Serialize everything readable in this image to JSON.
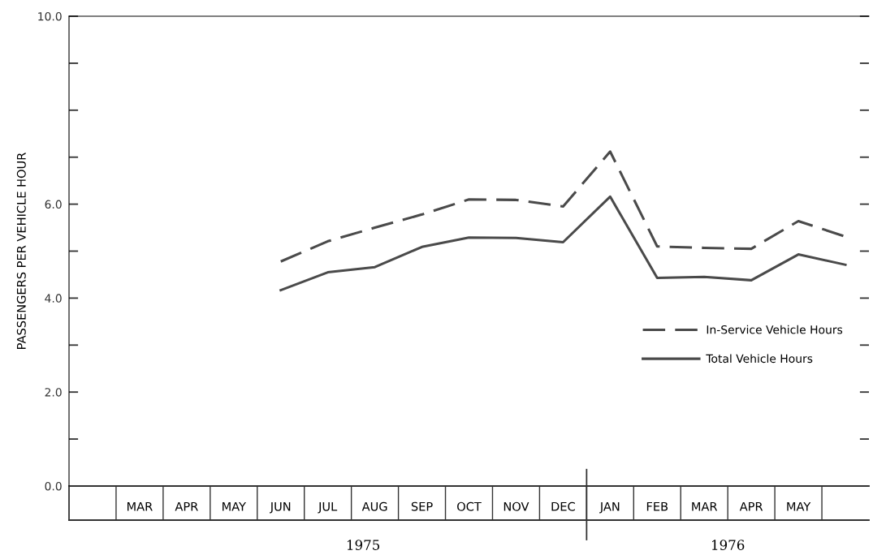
{
  "chart_data": {
    "type": "line",
    "ylabel": "PASSENGERS PER VEHICLE HOUR",
    "categories": [
      null,
      "MAR",
      "APR",
      "MAY",
      "JUN",
      "JUL",
      "AUG",
      "SEP",
      "OCT",
      "NOV",
      "DEC",
      "JAN",
      "FEB",
      "MAR",
      "APR",
      "MAY",
      null
    ],
    "series": [
      {
        "name": "In-Service Vehicle Hours",
        "color": "#4a4a4a",
        "line_style": "dashed",
        "values": [
          null,
          null,
          null,
          null,
          4.78,
          5.21,
          5.5,
          5.78,
          6.1,
          6.09,
          5.95,
          7.12,
          5.1,
          5.07,
          5.05,
          5.64,
          5.31
        ]
      },
      {
        "name": "Total Vehicle Hours",
        "color": "#4a4a4a",
        "line_style": "solid",
        "values": [
          null,
          null,
          null,
          null,
          4.17,
          4.55,
          4.66,
          5.09,
          5.29,
          5.28,
          5.19,
          6.16,
          4.43,
          4.45,
          4.38,
          4.93,
          4.71
        ]
      }
    ],
    "ylim": [
      0,
      10
    ],
    "yticks": [
      {
        "value": 0,
        "label": "0.0"
      },
      {
        "value": 1,
        "label": null
      },
      {
        "value": 2,
        "label": "2.0"
      },
      {
        "value": 3,
        "label": null
      },
      {
        "value": 4,
        "label": "4.0"
      },
      {
        "value": 5,
        "label": null
      },
      {
        "value": 6,
        "label": "6.0"
      },
      {
        "value": 7,
        "label": null
      },
      {
        "value": 8,
        "label": null
      },
      {
        "value": 9,
        "label": null
      },
      {
        "value": 10,
        "label": "10.0"
      }
    ],
    "annotations": [
      "1975",
      "1976"
    ],
    "legend": "right",
    "grid": false,
    "marker": "none"
  }
}
